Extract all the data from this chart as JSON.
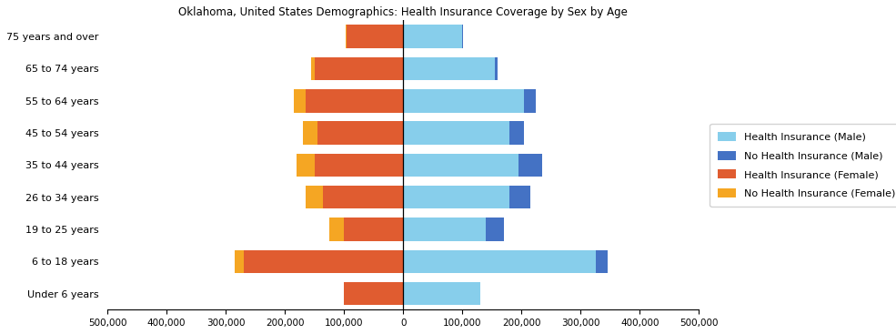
{
  "title": "Oklahoma, United States Demographics: Health Insurance Coverage by Sex by Age",
  "age_groups": [
    "Under 6 years",
    "6 to 18 years",
    "19 to 25 years",
    "26 to 34 years",
    "35 to 44 years",
    "45 to 54 years",
    "55 to 64 years",
    "65 to 74 years",
    "75 years and over"
  ],
  "health_ins_male": [
    130000,
    325000,
    140000,
    180000,
    195000,
    180000,
    205000,
    155000,
    100000
  ],
  "no_health_ins_male": [
    0,
    20000,
    30000,
    35000,
    40000,
    25000,
    20000,
    5000,
    2000
  ],
  "health_ins_female": [
    100000,
    270000,
    100000,
    135000,
    150000,
    145000,
    165000,
    150000,
    95000
  ],
  "no_health_ins_female": [
    0,
    15000,
    25000,
    30000,
    30000,
    25000,
    20000,
    5000,
    2000
  ],
  "color_health_ins_male": "#87CEEB",
  "color_no_health_ins_male": "#4472C4",
  "color_health_ins_female": "#E05C30",
  "color_no_health_ins_female": "#F5A623",
  "xlim": 500000,
  "legend_labels": [
    "Health Insurance (Male)",
    "No Health Insurance (Male)",
    "Health Insurance (Female)",
    "No Health Insurance (Female)"
  ]
}
